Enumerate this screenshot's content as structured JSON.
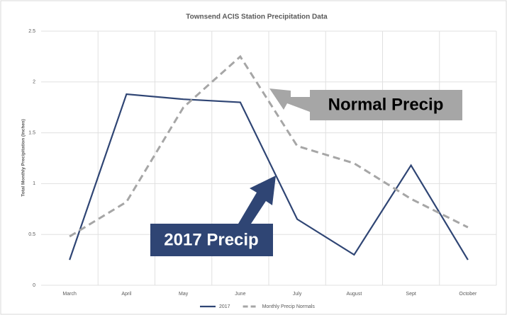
{
  "chart_data": {
    "type": "line",
    "title": "Townsend ACIS Station Precipitation Data",
    "y_label": "Total Monthly Precipitation (Inches)",
    "categories": [
      "March",
      "April",
      "May",
      "June",
      "July",
      "August",
      "Sept",
      "October"
    ],
    "series": [
      {
        "name": "2017",
        "color": "#2f4574",
        "dashed": false,
        "values": [
          0.25,
          1.88,
          1.83,
          1.8,
          0.65,
          0.3,
          1.18,
          0.25
        ]
      },
      {
        "name": "Monthly Precip Normals",
        "color": "#a6a6a6",
        "dashed": true,
        "values": [
          0.48,
          0.82,
          1.75,
          2.25,
          1.37,
          1.2,
          0.85,
          0.57
        ]
      }
    ],
    "ylim": [
      0,
      2.5
    ],
    "yticks": [
      0,
      0.5,
      1,
      1.5,
      2,
      2.5
    ],
    "grid": true,
    "legend": "bottom",
    "annotations": [
      {
        "text": "Normal Precip",
        "color": "#a6a6a6"
      },
      {
        "text": "2017 Precip",
        "color": "#2f4574"
      }
    ]
  }
}
